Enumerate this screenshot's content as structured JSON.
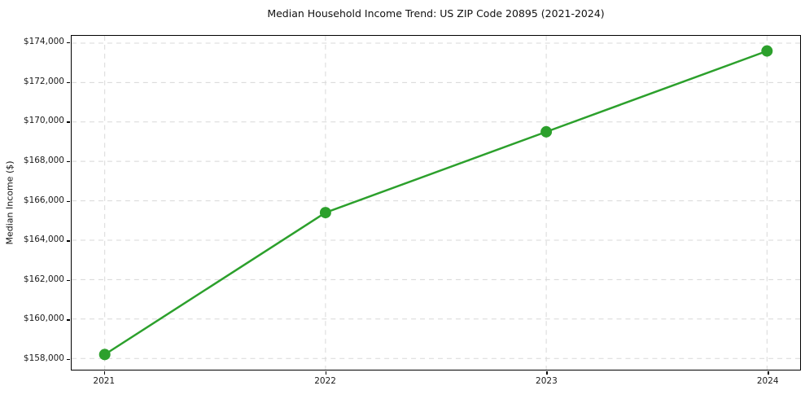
{
  "chart_data": {
    "type": "line",
    "title": "Median Household Income Trend: US ZIP Code 20895 (2021-2024)",
    "xlabel": "",
    "ylabel": "Median Income ($)",
    "x": [
      2021,
      2022,
      2023,
      2024
    ],
    "x_tick_labels": [
      "2021",
      "2022",
      "2023",
      "2024"
    ],
    "values": [
      158200,
      165400,
      169500,
      173600
    ],
    "y_ticks": [
      158000,
      160000,
      162000,
      164000,
      166000,
      168000,
      170000,
      172000,
      174000
    ],
    "y_tick_labels": [
      "$158,000",
      "$160,000",
      "$162,000",
      "$164,000",
      "$166,000",
      "$168,000",
      "$170,000",
      "$172,000",
      "$174,000"
    ],
    "xlim": [
      2020.85,
      2024.15
    ],
    "ylim": [
      157430,
      174370
    ],
    "line_color": "#2ca02c",
    "line_width": 2.5,
    "marker": "circle",
    "marker_radius": 7,
    "grid": "dashed",
    "grid_color": "#d8d8d8",
    "background_color": "#ffffff",
    "spine_color": "#000000",
    "legend": "none"
  }
}
